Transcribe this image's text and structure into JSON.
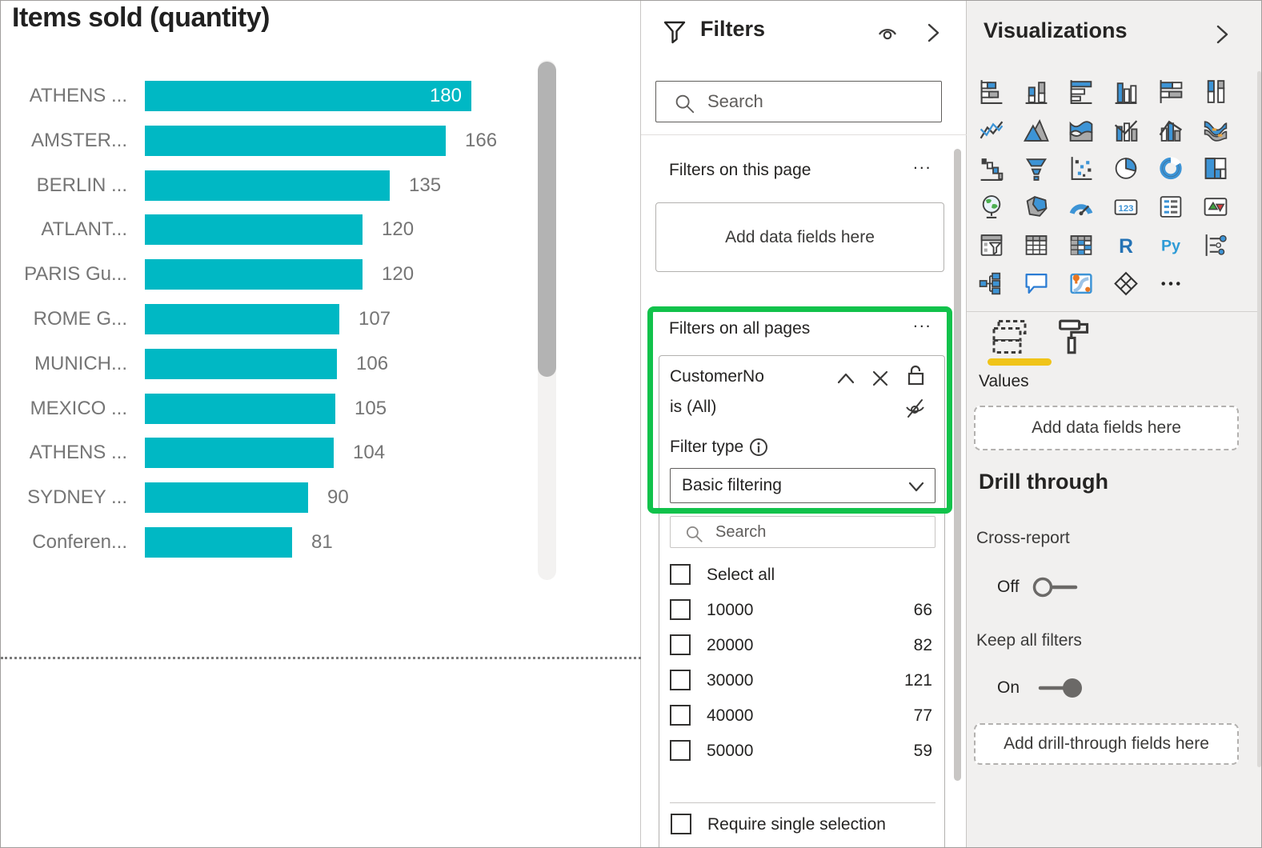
{
  "chart_data": {
    "type": "bar",
    "orientation": "horizontal",
    "title": "Items sold (quantity)",
    "categories": [
      "ATHENS ...",
      "AMSTER...",
      "BERLIN ...",
      "ATLANT...",
      "PARIS Gu...",
      "ROME G...",
      "MUNICH...",
      "MEXICO ...",
      "ATHENS ...",
      "SYDNEY ...",
      "Conferen..."
    ],
    "values": [
      180,
      166,
      135,
      120,
      120,
      107,
      106,
      105,
      104,
      90,
      81
    ],
    "xlabel": "",
    "ylabel": "",
    "value_labels_shown": true,
    "bar_color": "#00b8c4",
    "grid": false,
    "legend": false
  },
  "filters_pane": {
    "title": "Filters",
    "header_icons": [
      "funnel-icon",
      "eye-icon",
      "chevron-right-icon"
    ],
    "search_placeholder": "Search",
    "section_this_page": {
      "label": "Filters on this page",
      "more": "...",
      "dropzone_text": "Add data fields here"
    },
    "section_all_pages": {
      "label": "Filters on all pages",
      "more": "..."
    },
    "highlight_color": "#11c24b",
    "filter_card": {
      "field": "CustomerNo",
      "condition": "is (All)",
      "card_icons": [
        "chevron-up-icon",
        "close-icon",
        "lock-open-icon",
        "eye-slash-icon"
      ],
      "filter_type_label": "Filter type",
      "filter_type_value": "Basic filtering",
      "search_placeholder": "Search",
      "select_all_label": "Select all",
      "options": [
        {
          "value": "10000",
          "count": "66",
          "checked": false
        },
        {
          "value": "20000",
          "count": "82",
          "checked": false
        },
        {
          "value": "30000",
          "count": "121",
          "checked": false
        },
        {
          "value": "40000",
          "count": "77",
          "checked": false
        },
        {
          "value": "50000",
          "count": "59",
          "checked": false
        }
      ],
      "require_single_label": "Require single selection"
    }
  },
  "viz_pane": {
    "title": "Visualizations",
    "header_icon": "chevron-right-icon",
    "gallery_icons": [
      "stacked-bar-chart",
      "stacked-column-chart",
      "clustered-bar-chart",
      "clustered-column-chart",
      "hundred-stacked-bar-chart",
      "hundred-stacked-column-chart",
      "line-chart",
      "area-chart",
      "stacked-area-chart",
      "line-and-stacked-column-chart",
      "line-and-clustered-column-chart",
      "ribbon-chart",
      "waterfall-chart",
      "funnel-chart",
      "scatter-chart",
      "pie-chart",
      "donut-chart",
      "treemap",
      "map",
      "filled-map",
      "gauge",
      "card",
      "multi-row-card",
      "kpi",
      "slicer",
      "table",
      "matrix",
      "r-script-visual",
      "python-visual",
      "key-influencers",
      "decomposition-tree",
      "q-and-a",
      "arcgis-map",
      "power-apps-visual",
      "more-options"
    ],
    "tabs": {
      "fields": "fields-tab",
      "format": "format-tab",
      "active_underline_color": "#f0c419"
    },
    "values_label": "Values",
    "values_dropzone_text": "Add data fields here",
    "drill_through": {
      "title": "Drill through",
      "cross_report_label": "Cross-report",
      "cross_report_state": "Off",
      "keep_all_filters_label": "Keep all filters",
      "keep_all_filters_state": "On",
      "dropzone_text": "Add drill-through fields here"
    }
  }
}
